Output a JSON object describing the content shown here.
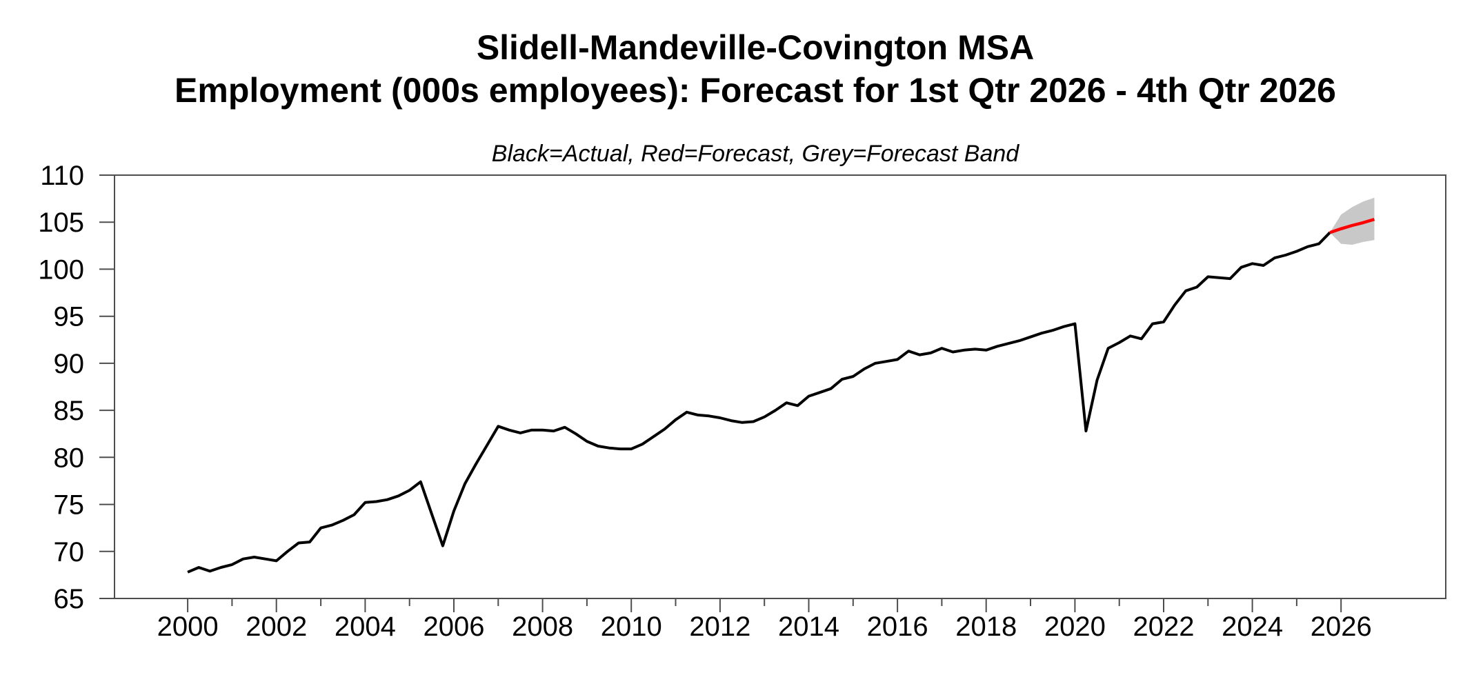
{
  "header": {
    "title_line1": "Slidell-Mandeville-Covington MSA",
    "title_line2": "Employment (000s employees): Forecast for 1st Qtr 2026 - 4th Qtr 2026",
    "subtitle": "Black=Actual, Red=Forecast, Grey=Forecast Band"
  },
  "chart_data": {
    "type": "line",
    "title": "Slidell-Mandeville-Covington MSA",
    "subtitle": "Employment (000s employees): Forecast for 1st Qtr 2026 - 4th Qtr 2026",
    "legend_note": "Black=Actual, Red=Forecast, Grey=Forecast Band",
    "frequency": "quarterly",
    "grid": false,
    "x_axis": {
      "range": [
        1998.35,
        2028.36
      ],
      "major_ticks": [
        2000,
        2002,
        2004,
        2006,
        2008,
        2010,
        2012,
        2014,
        2016,
        2018,
        2020,
        2022,
        2024,
        2026
      ],
      "minor_ticks": [
        2001,
        2003,
        2005,
        2007,
        2009,
        2011,
        2013,
        2015,
        2017,
        2019,
        2021,
        2023,
        2025
      ]
    },
    "y_axis": {
      "range": [
        65,
        110
      ],
      "ticks": [
        65,
        70,
        75,
        80,
        85,
        90,
        95,
        100,
        105,
        110
      ]
    },
    "colors": {
      "actual": "#000000",
      "forecast": "#ff0000",
      "band": "#c8c8c8",
      "axis": "#4d4d4d"
    },
    "series": {
      "actual": {
        "name": "Actual",
        "x_start": 2000.0,
        "x_step": 0.25,
        "values": [
          67.8,
          68.3,
          67.9,
          68.3,
          68.6,
          69.2,
          69.4,
          69.2,
          69.0,
          70.0,
          70.9,
          71.0,
          72.5,
          72.8,
          73.3,
          73.9,
          75.2,
          75.3,
          75.5,
          75.9,
          76.5,
          77.4,
          74.0,
          70.6,
          74.3,
          77.2,
          79.3,
          81.3,
          83.3,
          82.9,
          82.6,
          82.9,
          82.9,
          82.8,
          83.2,
          82.5,
          81.7,
          81.2,
          81.0,
          80.9,
          80.9,
          81.4,
          82.2,
          83.0,
          84.0,
          84.8,
          84.5,
          84.4,
          84.2,
          83.9,
          83.7,
          83.8,
          84.3,
          85.0,
          85.8,
          85.5,
          86.5,
          86.9,
          87.3,
          88.3,
          88.6,
          89.4,
          90.0,
          90.2,
          90.4,
          91.3,
          90.9,
          91.1,
          91.6,
          91.2,
          91.4,
          91.5,
          91.4,
          91.8,
          92.1,
          92.4,
          92.8,
          93.2,
          93.5,
          93.9,
          94.2,
          82.8,
          88.2,
          91.6,
          92.2,
          92.9,
          92.6,
          94.2,
          94.4,
          96.2,
          97.7,
          98.1,
          99.2,
          99.1,
          99.0,
          100.2,
          100.6,
          100.4,
          101.2,
          101.5,
          101.9,
          102.4,
          102.7,
          103.9
        ]
      },
      "forecast": {
        "name": "Forecast",
        "x": [
          2025.75,
          2026.0,
          2026.25,
          2026.5,
          2026.75
        ],
        "values": [
          103.9,
          104.3,
          104.65,
          104.95,
          105.3
        ]
      },
      "forecast_band": {
        "name": "Forecast Band",
        "x": [
          2025.75,
          2026.0,
          2026.25,
          2026.5,
          2026.75
        ],
        "upper": [
          103.9,
          105.8,
          106.6,
          107.2,
          107.6
        ],
        "lower": [
          103.9,
          102.7,
          102.6,
          102.9,
          103.1
        ]
      }
    }
  }
}
